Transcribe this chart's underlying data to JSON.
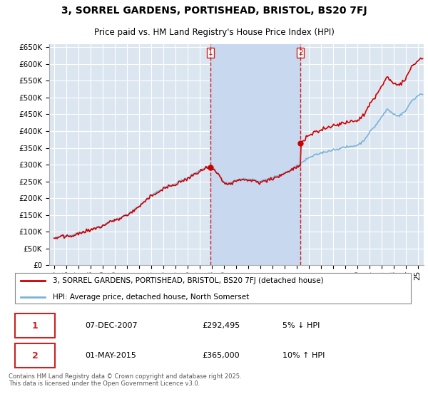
{
  "title": "3, SORREL GARDENS, PORTISHEAD, BRISTOL, BS20 7FJ",
  "subtitle": "Price paid vs. HM Land Registry's House Price Index (HPI)",
  "background_color": "#ffffff",
  "plot_bg_color": "#dce6f1",
  "shaded_region_color": "#c8d8ee",
  "grid_color": "#ffffff",
  "sale1_label": "07-DEC-2007",
  "sale1_price": 292495,
  "sale1_pct": "5% ↓ HPI",
  "sale2_label": "01-MAY-2015",
  "sale2_price": 365000,
  "sale2_pct": "10% ↑ HPI",
  "legend_line1": "3, SORREL GARDENS, PORTISHEAD, BRISTOL, BS20 7FJ (detached house)",
  "legend_line2": "HPI: Average price, detached house, North Somerset",
  "footer": "Contains HM Land Registry data © Crown copyright and database right 2025.\nThis data is licensed under the Open Government Licence v3.0.",
  "ylim": [
    0,
    660000
  ],
  "yticks": [
    0,
    50000,
    100000,
    150000,
    200000,
    250000,
    300000,
    350000,
    400000,
    450000,
    500000,
    550000,
    600000,
    650000
  ],
  "hpi_color": "#7ab3d8",
  "price_color": "#cc0000",
  "vline_color": "#cc2222",
  "marker_color": "#cc0000"
}
